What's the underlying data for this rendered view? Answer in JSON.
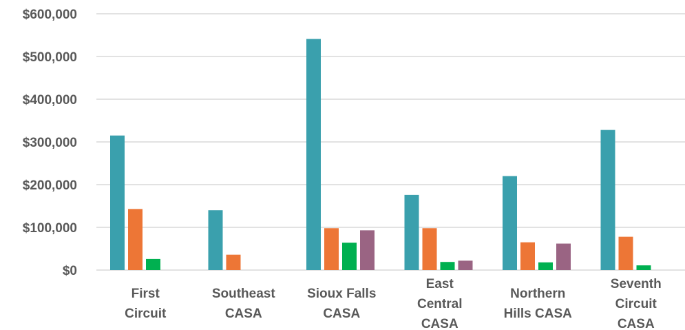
{
  "chart_data": {
    "type": "bar",
    "categories": [
      [
        "First",
        "Circuit"
      ],
      [
        "Southeast",
        "CASA"
      ],
      [
        "Sioux Falls",
        "CASA"
      ],
      [
        "East",
        "Central",
        "CASA"
      ],
      [
        "Northern",
        "Hills CASA"
      ],
      [
        "Seventh",
        "Circuit",
        "CASA"
      ]
    ],
    "series": [
      {
        "color": "#3aa0ad",
        "values": [
          315000,
          140000,
          541000,
          176000,
          220000,
          328000
        ]
      },
      {
        "color": "#ed7636",
        "values": [
          143000,
          36000,
          98000,
          98000,
          65000,
          78000
        ]
      },
      {
        "color": "#00b050",
        "values": [
          26000,
          0,
          64000,
          19000,
          18000,
          11000
        ]
      },
      {
        "color": "#9a6483",
        "values": [
          0,
          0,
          93000,
          22000,
          62000,
          0
        ]
      }
    ],
    "ylim": [
      0,
      600000
    ],
    "yticks": [
      0,
      100000,
      200000,
      300000,
      400000,
      500000,
      600000
    ],
    "ytick_labels": [
      "$0",
      "$100,000",
      "$200,000",
      "$300,000",
      "$400,000",
      "$500,000",
      "$600,000"
    ],
    "grid": true,
    "legend": "none"
  }
}
